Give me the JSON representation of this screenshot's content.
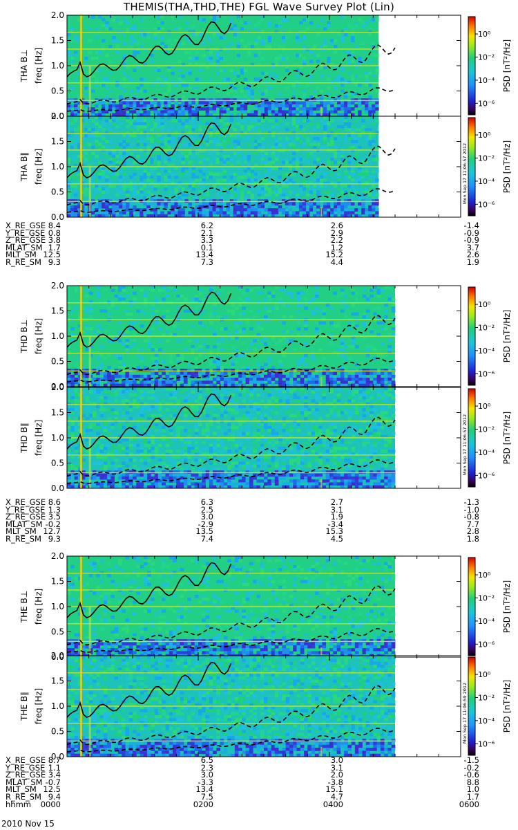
{
  "title": "THEMIS(THA,THD,THE) FGL Wave Survey Plot (Lin)",
  "date_label": "2010 Nov 15",
  "time_row_label": "hhmm",
  "time_ticks": [
    "0000",
    "0200",
    "0400",
    "0600"
  ],
  "colors": {
    "background": "#21d07a",
    "grid_line": "#c8e619",
    "curve": "#000000"
  },
  "colorbar": {
    "label_main": "PSD",
    "label_units": "[nT²/Hz]",
    "ticks": [
      "10⁰",
      "10⁻²",
      "10⁻⁴",
      "10⁻⁶"
    ],
    "tick_log_values": [
      0,
      -2,
      -4,
      -6
    ],
    "range_log": [
      -7,
      1.5
    ],
    "stamps": [
      "Mon Sep 17 11:06:57 2012",
      "Mon Sep 17 11:06:57 2012",
      "Mon Sep 17 11:06:59 2012"
    ]
  },
  "chart_data": [
    {
      "type": "heatmap",
      "probe": "THA",
      "panels": [
        {
          "ylabel": "THA B⊥",
          "ylabel_sub": "freq [Hz]",
          "ylim": [
            0,
            2.0
          ],
          "yticks": [
            "0.0",
            "0.5",
            "1.0",
            "1.5",
            "2.0"
          ],
          "data_end_hhmm": "0445"
        },
        {
          "ylabel": "THA B∥",
          "ylabel_sub": "freq [Hz]",
          "ylim": [
            0,
            2.0
          ],
          "yticks": [
            "0.0",
            "0.5",
            "1.0",
            "1.5",
            "2.0"
          ],
          "data_end_hhmm": "0445"
        }
      ],
      "ephemeris": [
        {
          "label": "X_RE_GSE",
          "values": [
            "8.4",
            "6.2",
            "2.6",
            "-1.4"
          ]
        },
        {
          "label": "Y_RE_GSE",
          "values": [
            "0.8",
            "2.1",
            "2.9",
            "-0.9"
          ]
        },
        {
          "label": "Z_RE_GSE",
          "values": [
            "3.8",
            "3.3",
            "2.2",
            "-0.9"
          ]
        },
        {
          "label": "MLAT_SM",
          "values": [
            "1.7",
            "0.1",
            "1.2",
            "3.7"
          ]
        },
        {
          "label": "MLT_SM",
          "values": [
            "12.5",
            "13.4",
            "15.2",
            "2.6"
          ]
        },
        {
          "label": "R_RE_SM",
          "values": [
            "9.3",
            "7.3",
            "4.4",
            "1.9"
          ]
        }
      ]
    },
    {
      "type": "heatmap",
      "probe": "THD",
      "panels": [
        {
          "ylabel": "THD B⊥",
          "ylabel_sub": "freq [Hz]",
          "ylim": [
            0,
            2.0
          ],
          "yticks": [
            "0.0",
            "0.5",
            "1.0",
            "1.5",
            "2.0"
          ],
          "data_end_hhmm": "0500"
        },
        {
          "ylabel": "THD B∥",
          "ylabel_sub": "freq [Hz]",
          "ylim": [
            0,
            2.0
          ],
          "yticks": [
            "0.0",
            "0.5",
            "1.0",
            "1.5",
            "2.0"
          ],
          "data_end_hhmm": "0500"
        }
      ],
      "ephemeris": [
        {
          "label": "X_RE_GSE",
          "values": [
            "8.6",
            "6.3",
            "2.7",
            "-1.3"
          ]
        },
        {
          "label": "Y_RE_GSE",
          "values": [
            "1.3",
            "2.5",
            "3.1",
            "-1.0"
          ]
        },
        {
          "label": "Z_RE_GSE",
          "values": [
            "3.5",
            "3.0",
            "1.9",
            "-0.8"
          ]
        },
        {
          "label": "MLAT_SM",
          "values": [
            "-0.2",
            "-2.9",
            "-3.4",
            "7.7"
          ]
        },
        {
          "label": "MLT_SM",
          "values": [
            "12.7",
            "13.5",
            "15.3",
            "2.8"
          ]
        },
        {
          "label": "R_RE_SM",
          "values": [
            "9.3",
            "7.4",
            "4.5",
            "1.8"
          ]
        }
      ]
    },
    {
      "type": "heatmap",
      "probe": "THE",
      "panels": [
        {
          "ylabel": "THE B⊥",
          "ylabel_sub": "freq [Hz]",
          "ylim": [
            0,
            2.0
          ],
          "yticks": [
            "0.0",
            "0.5",
            "1.0",
            "1.5",
            "2.0"
          ],
          "data_end_hhmm": "0500"
        },
        {
          "ylabel": "THE B∥",
          "ylabel_sub": "freq [Hz]",
          "ylim": [
            0,
            2.0
          ],
          "yticks": [
            "0.0",
            "0.5",
            "1.0",
            "1.5",
            "2.0"
          ],
          "data_end_hhmm": "0500"
        }
      ],
      "ephemeris": [
        {
          "label": "X_RE_GSE",
          "values": [
            "8.7",
            "6.5",
            "3.0",
            "-1.5"
          ]
        },
        {
          "label": "Y_RE_GSE",
          "values": [
            "1.1",
            "2.3",
            "3.1",
            "-0.2"
          ]
        },
        {
          "label": "Z_RE_GSE",
          "values": [
            "3.4",
            "3.0",
            "2.0",
            "-0.6"
          ]
        },
        {
          "label": "MLAT_SM",
          "values": [
            "-0.7",
            "-3.3",
            "-3.8",
            "8.8"
          ]
        },
        {
          "label": "MLT_SM",
          "values": [
            "12.5",
            "13.4",
            "15.1",
            "1.0"
          ]
        },
        {
          "label": "R_RE_SM",
          "values": [
            "9.4",
            "7.5",
            "4.7",
            "1.7"
          ]
        }
      ]
    }
  ]
}
